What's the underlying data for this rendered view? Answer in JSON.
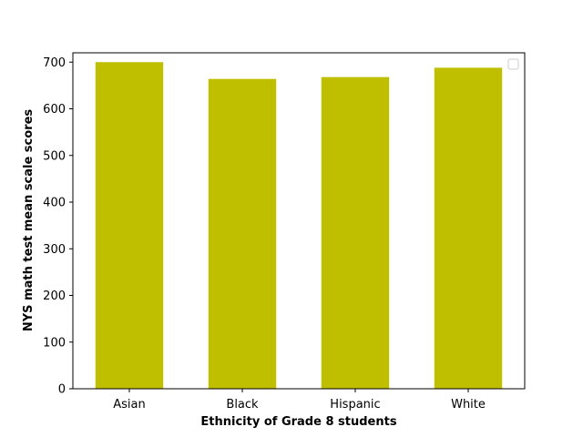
{
  "chart_data": {
    "type": "bar",
    "categories": [
      "Asian",
      "Black",
      "Hispanic",
      "White"
    ],
    "values": [
      700,
      664,
      668,
      688
    ],
    "xlabel": "Ethnicity of Grade 8 students",
    "ylabel": "NYS math test mean scale scores",
    "ylim": [
      0,
      720
    ],
    "yticks": [
      0,
      100,
      200,
      300,
      400,
      500,
      600,
      700
    ],
    "bar_color": "#bfbf00",
    "grid": false,
    "legend": {
      "entries": [],
      "position": "top-right"
    }
  }
}
